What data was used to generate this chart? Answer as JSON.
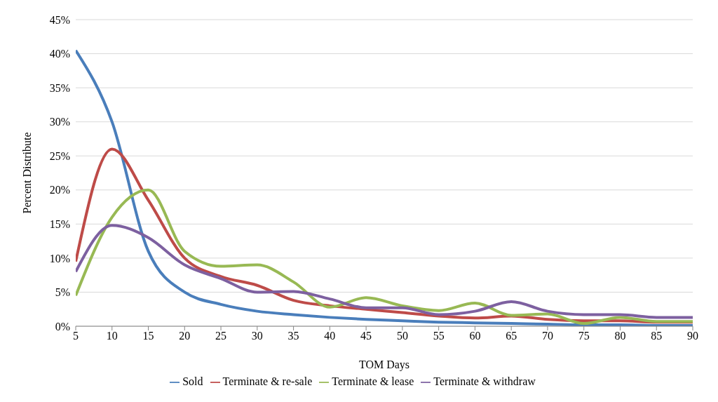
{
  "chart_data": {
    "type": "line",
    "xlabel": "TOM Days",
    "ylabel": "Percent Distribute",
    "x": [
      5,
      10,
      15,
      20,
      25,
      30,
      35,
      40,
      45,
      50,
      55,
      60,
      65,
      70,
      75,
      80,
      85,
      90
    ],
    "series": [
      {
        "name": "Sold",
        "color": "#4a7ebb",
        "values": [
          40.5,
          30,
          11,
          5,
          3.2,
          2.2,
          1.7,
          1.3,
          1.0,
          0.8,
          0.6,
          0.5,
          0.4,
          0.3,
          0.2,
          0.2,
          0.1,
          0.1
        ]
      },
      {
        "name": "Terminate & re-sale",
        "color": "#be4b48",
        "values": [
          9.5,
          26,
          18.5,
          10,
          7.3,
          6,
          3.8,
          3,
          2.5,
          2,
          1.5,
          1.2,
          1.5,
          1,
          0.8,
          0.8,
          0.6,
          0.6
        ]
      },
      {
        "name": "Terminate & lease",
        "color": "#98b954",
        "values": [
          4.5,
          16,
          20,
          11,
          8.8,
          9,
          6.5,
          2.8,
          4.2,
          3,
          2.3,
          3.4,
          1.6,
          1.8,
          0.4,
          1.3,
          0.7,
          0.7
        ]
      },
      {
        "name": "Terminate & withdraw",
        "color": "#7d60a0",
        "values": [
          8,
          14.8,
          13,
          9,
          7,
          5,
          5.1,
          4,
          2.7,
          2.7,
          1.7,
          2.2,
          3.6,
          2.2,
          1.7,
          1.7,
          1.3,
          1.3
        ]
      }
    ],
    "xlim": [
      5,
      90
    ],
    "xticks": [
      5,
      10,
      15,
      20,
      25,
      30,
      35,
      40,
      45,
      50,
      55,
      60,
      65,
      70,
      75,
      80,
      85,
      90
    ],
    "ylim": [
      0,
      45
    ],
    "yticks": [
      {
        "value": 0,
        "label": "0%"
      },
      {
        "value": 5,
        "label": "5%"
      },
      {
        "value": 10,
        "label": "10%"
      },
      {
        "value": 15,
        "label": "15%"
      },
      {
        "value": 20,
        "label": "20%"
      },
      {
        "value": 25,
        "label": "25%"
      },
      {
        "value": 30,
        "label": "30%"
      },
      {
        "value": 35,
        "label": "35%"
      },
      {
        "value": 40,
        "label": "40%"
      },
      {
        "value": 45,
        "label": "45%"
      }
    ],
    "grid": "y",
    "legend": "bottom",
    "marker": "none",
    "line_style": "solid"
  }
}
